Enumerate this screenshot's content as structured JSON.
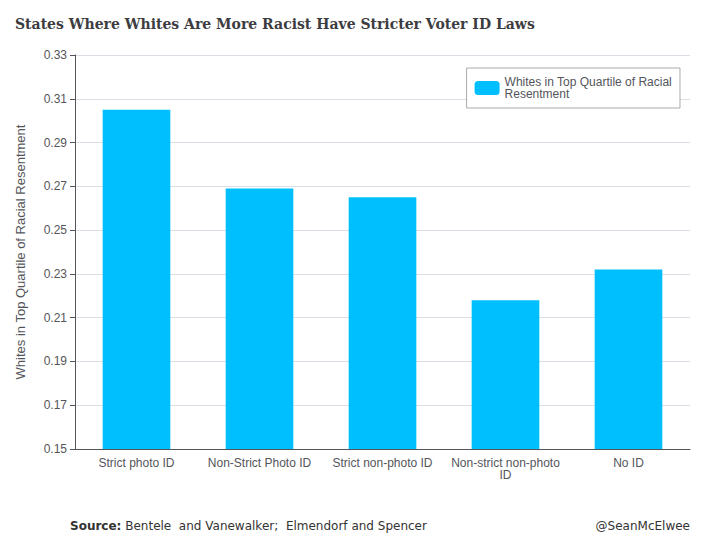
{
  "chart_data": {
    "type": "bar",
    "title": "States Where Whites Are More Racist Have Stricter Voter ID Laws",
    "categories": [
      "Strict photo ID",
      "Non-Strict Photo ID",
      "Strict non-photo ID",
      "Non-strict non-photo\nID",
      "No ID"
    ],
    "series": [
      {
        "name": "Whites in Top Quartile of Racial\nResentment",
        "color": "#00BFFF",
        "values": [
          0.305,
          0.269,
          0.265,
          0.218,
          0.232
        ]
      }
    ],
    "ylabel": "Whites in Top Quartile of Racial Resentment",
    "ylim": [
      0.15,
      0.33
    ],
    "yticks": [
      0.15,
      0.17,
      0.19,
      0.21,
      0.23,
      0.25,
      0.27,
      0.29,
      0.31,
      0.33
    ],
    "grid": true,
    "legend": "upper right",
    "annotations": [
      "Source:",
      " Bentele  and Vanewalker;  Elmendorf and Spencer",
      "@SeanMcElwee"
    ]
  }
}
